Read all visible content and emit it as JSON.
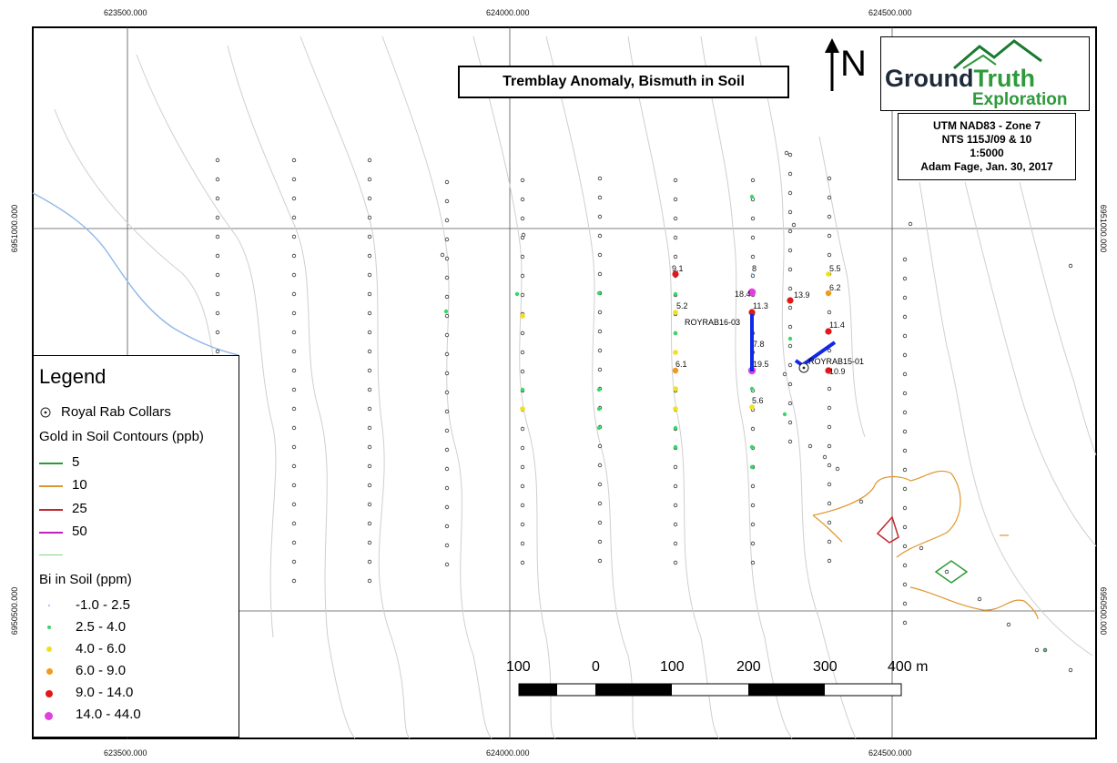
{
  "title": "Tremblay Anomaly, Bismuth in Soil",
  "north_label": "N",
  "logo": {
    "word_dark": "Ground",
    "word_green": "Truth",
    "word_line2": "Exploration"
  },
  "info": {
    "line1": "UTM NAD83 - Zone 7",
    "line2": "NTS 115J/09 & 10",
    "line3": "1:5000",
    "line4": "Adam Fage, Jan. 30, 2017"
  },
  "coords": {
    "top": [
      "623500.000",
      "624000.000",
      "624500.000"
    ],
    "bottom": [
      "623500.000",
      "624000.000",
      "624500.000"
    ],
    "left": [
      "6951000.000",
      "6950500.000"
    ],
    "right": [
      "6951000.000",
      "6950500.000"
    ]
  },
  "legend": {
    "title": "Legend",
    "collars_label": "Royal Rab Collars",
    "contours_title": "Gold in Soil Contours (ppb)",
    "contours": [
      {
        "label": "5",
        "color": "#2a9a35"
      },
      {
        "label": "10",
        "color": "#e0962e"
      },
      {
        "label": "25",
        "color": "#c0282c"
      },
      {
        "label": "50",
        "color": "#c020c0"
      },
      {
        "label": "",
        "color": "#7fd67f"
      }
    ],
    "bi_title": "Bi in Soil (ppm)",
    "bi_classes": [
      {
        "label": "-1.0 - 2.5",
        "color": "#7fb8ff"
      },
      {
        "label": "2.5 - 4.0",
        "color": "#38d868"
      },
      {
        "label": "4.0 - 6.0",
        "color": "#f0e020"
      },
      {
        "label": "6.0 - 9.0",
        "color": "#f09a20"
      },
      {
        "label": "9.0 - 14.0",
        "color": "#e01818"
      },
      {
        "label": "14.0 - 44.0",
        "color": "#e040e0"
      }
    ]
  },
  "scale_bar": {
    "labels": [
      "100",
      "0",
      "100",
      "200",
      "300",
      "400 m"
    ]
  },
  "drill_labels": [
    "ROYRAB16-03",
    "ROYRAB15-01"
  ],
  "value_labels": [
    "9.1",
    "8",
    "5.5",
    "18.4",
    "11.3",
    "13.9",
    "6.2",
    "5.2",
    "11.4",
    "7.8",
    "6.1",
    "19.5",
    "10.9",
    "5.6"
  ]
}
